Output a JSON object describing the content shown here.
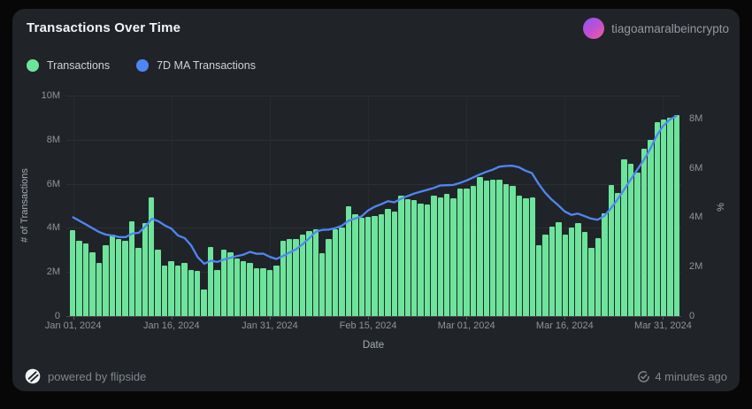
{
  "header": {
    "title": "Transactions Over Time",
    "user": "tiagoamaralbeincrypto"
  },
  "legend": [
    {
      "label": "Transactions",
      "color": "#6ee39b"
    },
    {
      "label": "7D MA Transactions",
      "color": "#5086f3"
    }
  ],
  "footer": {
    "powered_by": "powered by flipside",
    "updated": "4 minutes ago",
    "flipside_logo_icon": "flipside-logo-icon",
    "updated_icon": "refresh-check-icon"
  },
  "chart_data": {
    "type": "bar+line",
    "title": "Transactions Over Time",
    "xlabel": "Date",
    "ylabel_left": "# of Transactions",
    "ylabel_right": "%",
    "grid": true,
    "legend_position": "top-left",
    "unit": "M",
    "left_axis": {
      "tick_labels": [
        "0",
        "2M",
        "4M",
        "6M",
        "8M",
        "10M"
      ],
      "tick_values": [
        0,
        2,
        4,
        6,
        8,
        10
      ],
      "max": 10
    },
    "right_axis": {
      "tick_labels": [
        "0",
        "2M",
        "4M",
        "6M",
        "8M"
      ],
      "tick_values": [
        0,
        2,
        4,
        6,
        8
      ],
      "top_value": 8.93
    },
    "x_tick_labels": [
      "Jan 01, 2024",
      "Jan 16, 2024",
      "Jan 31, 2024",
      "Feb 15, 2024",
      "Mar 01, 2024",
      "Mar 16, 2024",
      "Mar 31, 2024"
    ],
    "x_tick_indices": [
      0,
      15,
      30,
      45,
      60,
      75,
      90
    ],
    "dates": [
      "2024-01-01",
      "2024-01-02",
      "2024-01-03",
      "2024-01-04",
      "2024-01-05",
      "2024-01-06",
      "2024-01-07",
      "2024-01-08",
      "2024-01-09",
      "2024-01-10",
      "2024-01-11",
      "2024-01-12",
      "2024-01-13",
      "2024-01-14",
      "2024-01-15",
      "2024-01-16",
      "2024-01-17",
      "2024-01-18",
      "2024-01-19",
      "2024-01-20",
      "2024-01-21",
      "2024-01-22",
      "2024-01-23",
      "2024-01-24",
      "2024-01-25",
      "2024-01-26",
      "2024-01-27",
      "2024-01-28",
      "2024-01-29",
      "2024-01-30",
      "2024-01-31",
      "2024-02-01",
      "2024-02-02",
      "2024-02-03",
      "2024-02-04",
      "2024-02-05",
      "2024-02-06",
      "2024-02-07",
      "2024-02-08",
      "2024-02-09",
      "2024-02-10",
      "2024-02-11",
      "2024-02-12",
      "2024-02-13",
      "2024-02-14",
      "2024-02-15",
      "2024-02-16",
      "2024-02-17",
      "2024-02-18",
      "2024-02-19",
      "2024-02-20",
      "2024-02-21",
      "2024-02-22",
      "2024-02-23",
      "2024-02-24",
      "2024-02-25",
      "2024-02-26",
      "2024-02-27",
      "2024-02-28",
      "2024-02-29",
      "2024-03-01",
      "2024-03-02",
      "2024-03-03",
      "2024-03-04",
      "2024-03-05",
      "2024-03-06",
      "2024-03-07",
      "2024-03-08",
      "2024-03-09",
      "2024-03-10",
      "2024-03-11",
      "2024-03-12",
      "2024-03-13",
      "2024-03-14",
      "2024-03-15",
      "2024-03-16",
      "2024-03-17",
      "2024-03-18",
      "2024-03-19",
      "2024-03-20",
      "2024-03-21",
      "2024-03-22",
      "2024-03-23",
      "2024-03-24",
      "2024-03-25",
      "2024-03-26",
      "2024-03-27",
      "2024-03-28",
      "2024-03-29",
      "2024-03-30",
      "2024-03-31",
      "2024-04-01",
      "2024-04-02"
    ],
    "series": [
      {
        "name": "Transactions",
        "type": "bar",
        "axis": "left",
        "color": "#6ee39b",
        "unit": "M",
        "values": [
          3.9,
          3.4,
          3.3,
          2.9,
          2.4,
          3.2,
          3.7,
          3.5,
          3.4,
          4.3,
          3.1,
          4.2,
          5.4,
          3.0,
          2.3,
          2.5,
          2.3,
          2.4,
          2.1,
          2.05,
          1.2,
          3.15,
          2.1,
          3.0,
          2.9,
          2.6,
          2.5,
          2.4,
          2.15,
          2.15,
          2.1,
          2.3,
          3.4,
          3.5,
          3.5,
          3.7,
          3.85,
          3.95,
          2.85,
          3.5,
          3.95,
          4.0,
          5.0,
          4.6,
          4.45,
          4.5,
          4.55,
          4.6,
          4.85,
          4.75,
          5.45,
          5.3,
          5.25,
          5.1,
          5.05,
          5.45,
          5.4,
          5.55,
          5.35,
          5.8,
          5.8,
          5.9,
          6.3,
          6.15,
          6.2,
          6.2,
          6.0,
          5.9,
          5.45,
          5.35,
          5.4,
          3.2,
          3.7,
          4.05,
          4.25,
          3.7,
          4.0,
          4.2,
          3.8,
          3.1,
          3.55,
          4.65,
          5.95,
          5.6,
          7.1,
          6.9,
          6.5,
          7.6,
          8.0,
          8.8,
          8.9,
          9.0,
          9.1
        ]
      },
      {
        "name": "7D MA Transactions",
        "type": "line",
        "axis": "right",
        "color": "#5086f3",
        "unit": "M",
        "values": [
          4.0,
          3.85,
          3.7,
          3.55,
          3.4,
          3.3,
          3.26,
          3.2,
          3.2,
          3.34,
          3.37,
          3.63,
          3.94,
          3.84,
          3.67,
          3.54,
          3.26,
          3.16,
          2.86,
          2.38,
          2.12,
          2.24,
          2.19,
          2.29,
          2.36,
          2.43,
          2.49,
          2.6,
          2.52,
          2.53,
          2.4,
          2.31,
          2.43,
          2.57,
          2.7,
          2.91,
          3.15,
          3.41,
          3.49,
          3.5,
          3.56,
          3.66,
          3.86,
          3.95,
          4.04,
          4.28,
          4.43,
          4.53,
          4.65,
          4.61,
          4.75,
          4.86,
          4.96,
          5.04,
          5.11,
          5.19,
          5.29,
          5.3,
          5.31,
          5.39,
          5.49,
          5.61,
          5.73,
          5.84,
          5.93,
          6.05,
          6.08,
          6.09,
          6.03,
          5.89,
          5.79,
          5.36,
          5.0,
          4.72,
          4.49,
          4.24,
          4.1,
          4.15,
          4.05,
          3.95,
          3.9,
          4.05,
          4.35,
          4.7,
          5.1,
          5.5,
          5.9,
          6.3,
          6.75,
          7.3,
          7.7,
          7.95,
          8.1
        ]
      }
    ]
  }
}
